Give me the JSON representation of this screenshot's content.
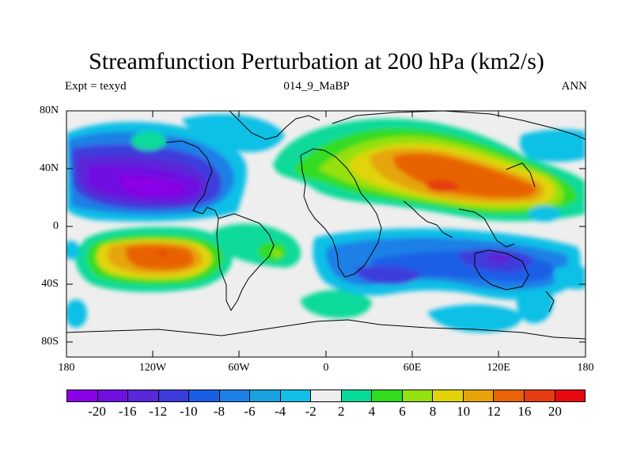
{
  "title": "Streamfunction Perturbation at 200 hPa (km2/s)",
  "subtitle_left": "Expt = texyd",
  "subtitle_center": "014_9_MaBP",
  "subtitle_right": "ANN",
  "y_axis_labels": [
    "80N",
    "40N",
    "0",
    "40S",
    "80S"
  ],
  "x_axis_labels": [
    "180",
    "120W",
    "60W",
    "0",
    "60E",
    "120E",
    "180"
  ],
  "colorbar": {
    "labels": [
      "-20",
      "-16",
      "-12",
      "-10",
      "-8",
      "-6",
      "-4",
      "-2",
      "2",
      "4",
      "6",
      "8",
      "10",
      "12",
      "16",
      "20"
    ],
    "colors": [
      "#8a00e6",
      "#7010e0",
      "#5a28d8",
      "#3c3cdc",
      "#1a5ee6",
      "#1e80e6",
      "#18a2e0",
      "#10c0e6",
      "#eeeeee",
      "#08da9a",
      "#30dc20",
      "#96e010",
      "#e0d408",
      "#e6a408",
      "#e86404",
      "#e63c10",
      "#e60a10"
    ]
  }
}
